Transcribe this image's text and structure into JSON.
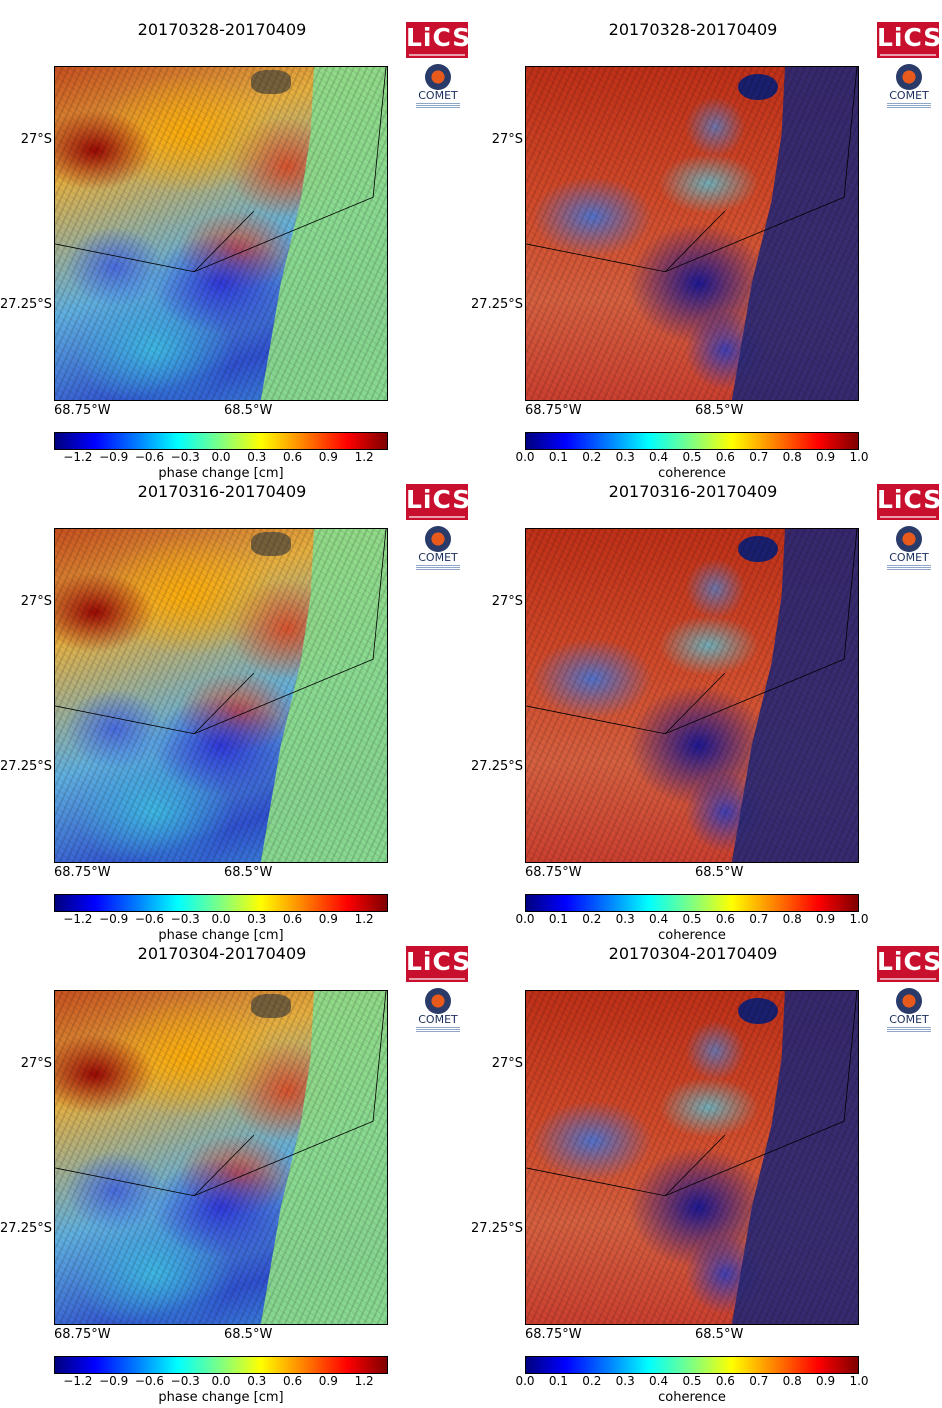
{
  "panels": [
    {
      "title": "20170328-20170409",
      "kind": "phase",
      "lat_ticks": [
        "27°S",
        "27.25°S"
      ],
      "lon_ticks": [
        "68.75°W",
        "68.5°W"
      ],
      "colorbar_ticks": [
        "−1.2",
        "−0.9",
        "−0.6",
        "−0.3",
        "0.0",
        "0.3",
        "0.6",
        "0.9",
        "1.2"
      ],
      "colorbar_label": "phase change [cm]"
    },
    {
      "title": "20170328-20170409",
      "kind": "coherence",
      "lat_ticks": [
        "27°S",
        "27.25°S"
      ],
      "lon_ticks": [
        "68.75°W",
        "68.5°W"
      ],
      "colorbar_ticks": [
        "0.0",
        "0.1",
        "0.2",
        "0.3",
        "0.4",
        "0.5",
        "0.6",
        "0.7",
        "0.8",
        "0.9",
        "1.0"
      ],
      "colorbar_label": "coherence"
    },
    {
      "title": "20170316-20170409",
      "kind": "phase",
      "lat_ticks": [
        "27°S",
        "27.25°S"
      ],
      "lon_ticks": [
        "68.75°W",
        "68.5°W"
      ],
      "colorbar_ticks": [
        "−1.2",
        "−0.9",
        "−0.6",
        "−0.3",
        "0.0",
        "0.3",
        "0.6",
        "0.9",
        "1.2"
      ],
      "colorbar_label": "phase change [cm]"
    },
    {
      "title": "20170316-20170409",
      "kind": "coherence",
      "lat_ticks": [
        "27°S",
        "27.25°S"
      ],
      "lon_ticks": [
        "68.75°W",
        "68.5°W"
      ],
      "colorbar_ticks": [
        "0.0",
        "0.1",
        "0.2",
        "0.3",
        "0.4",
        "0.5",
        "0.6",
        "0.7",
        "0.8",
        "0.9",
        "1.0"
      ],
      "colorbar_label": "coherence"
    },
    {
      "title": "20170304-20170409",
      "kind": "phase",
      "lat_ticks": [
        "27°S",
        "27.25°S"
      ],
      "lon_ticks": [
        "68.75°W",
        "68.5°W"
      ],
      "colorbar_ticks": [
        "−1.2",
        "−0.9",
        "−0.6",
        "−0.3",
        "0.0",
        "0.3",
        "0.6",
        "0.9",
        "1.2"
      ],
      "colorbar_label": "phase change [cm]"
    },
    {
      "title": "20170304-20170409",
      "kind": "coherence",
      "lat_ticks": [
        "27°S",
        "27.25°S"
      ],
      "lon_ticks": [
        "68.75°W",
        "68.5°W"
      ],
      "colorbar_ticks": [
        "0.0",
        "0.1",
        "0.2",
        "0.3",
        "0.4",
        "0.5",
        "0.6",
        "0.7",
        "0.8",
        "0.9",
        "1.0"
      ],
      "colorbar_label": "coherence"
    }
  ],
  "logo": {
    "lics_text": "LiCS",
    "comet_text": "COMET",
    "lics_color": "#c8102e",
    "comet_color": "#1b2d5c"
  },
  "colormap": "jet"
}
